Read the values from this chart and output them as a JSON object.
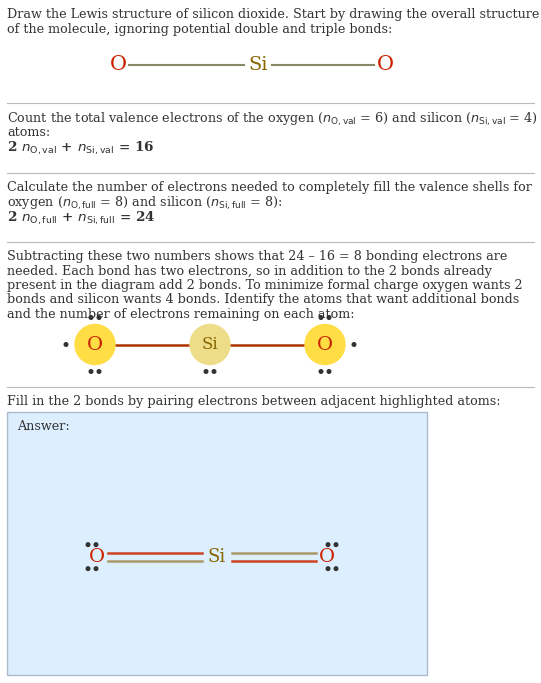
{
  "bg_color": "#ffffff",
  "answer_bg_color": "#ddeeff",
  "atom_O_color": "#cc2200",
  "atom_Si_color": "#886600",
  "atom_O_bg": "#ffdd44",
  "atom_Si_bg": "#eedd88",
  "bond_color_dark": "#aa3300",
  "bond_color_answer": "#cc4422",
  "bond_color_answer2": "#aa9966",
  "text_color": "#333333",
  "separator_color": "#bbbbbb",
  "dot_color": "#333333",
  "line1": "Draw the Lewis structure of silicon dioxide. Start by drawing the overall structure",
  "line2": "of the molecule, ignoring potential double and triple bonds:",
  "s1_line1": "Count the total valence electrons of the oxygen ($n_{\\mathrm{O,val}}$ = 6) and silicon ($n_{\\mathrm{Si,val}}$ = 4)",
  "s1_line2": "atoms:",
  "s1_line3": "2 $n_{\\mathrm{O,val}}$ + $n_{\\mathrm{Si,val}}$ = 16",
  "s2_line1": "Calculate the number of electrons needed to completely fill the valence shells for",
  "s2_line2": "oxygen ($n_{\\mathrm{O,full}}$ = 8) and silicon ($n_{\\mathrm{Si,full}}$ = 8):",
  "s2_line3": "2 $n_{\\mathrm{O,full}}$ + $n_{\\mathrm{Si,full}}$ = 24",
  "s3_line1": "Subtracting these two numbers shows that 24 – 16 = 8 bonding electrons are",
  "s3_line2": "needed. Each bond has two electrons, so in addition to the 2 bonds already",
  "s3_line3": "present in the diagram add 2 bonds. To minimize formal charge oxygen wants 2",
  "s3_line4": "bonds and silicon wants 4 bonds. Identify the atoms that want additional bonds",
  "s3_line5": "and the number of electrons remaining on each atom:",
  "s4_line1": "Fill in the 2 bonds by pairing electrons between adjacent highlighted atoms:",
  "answer_label": "Answer:"
}
